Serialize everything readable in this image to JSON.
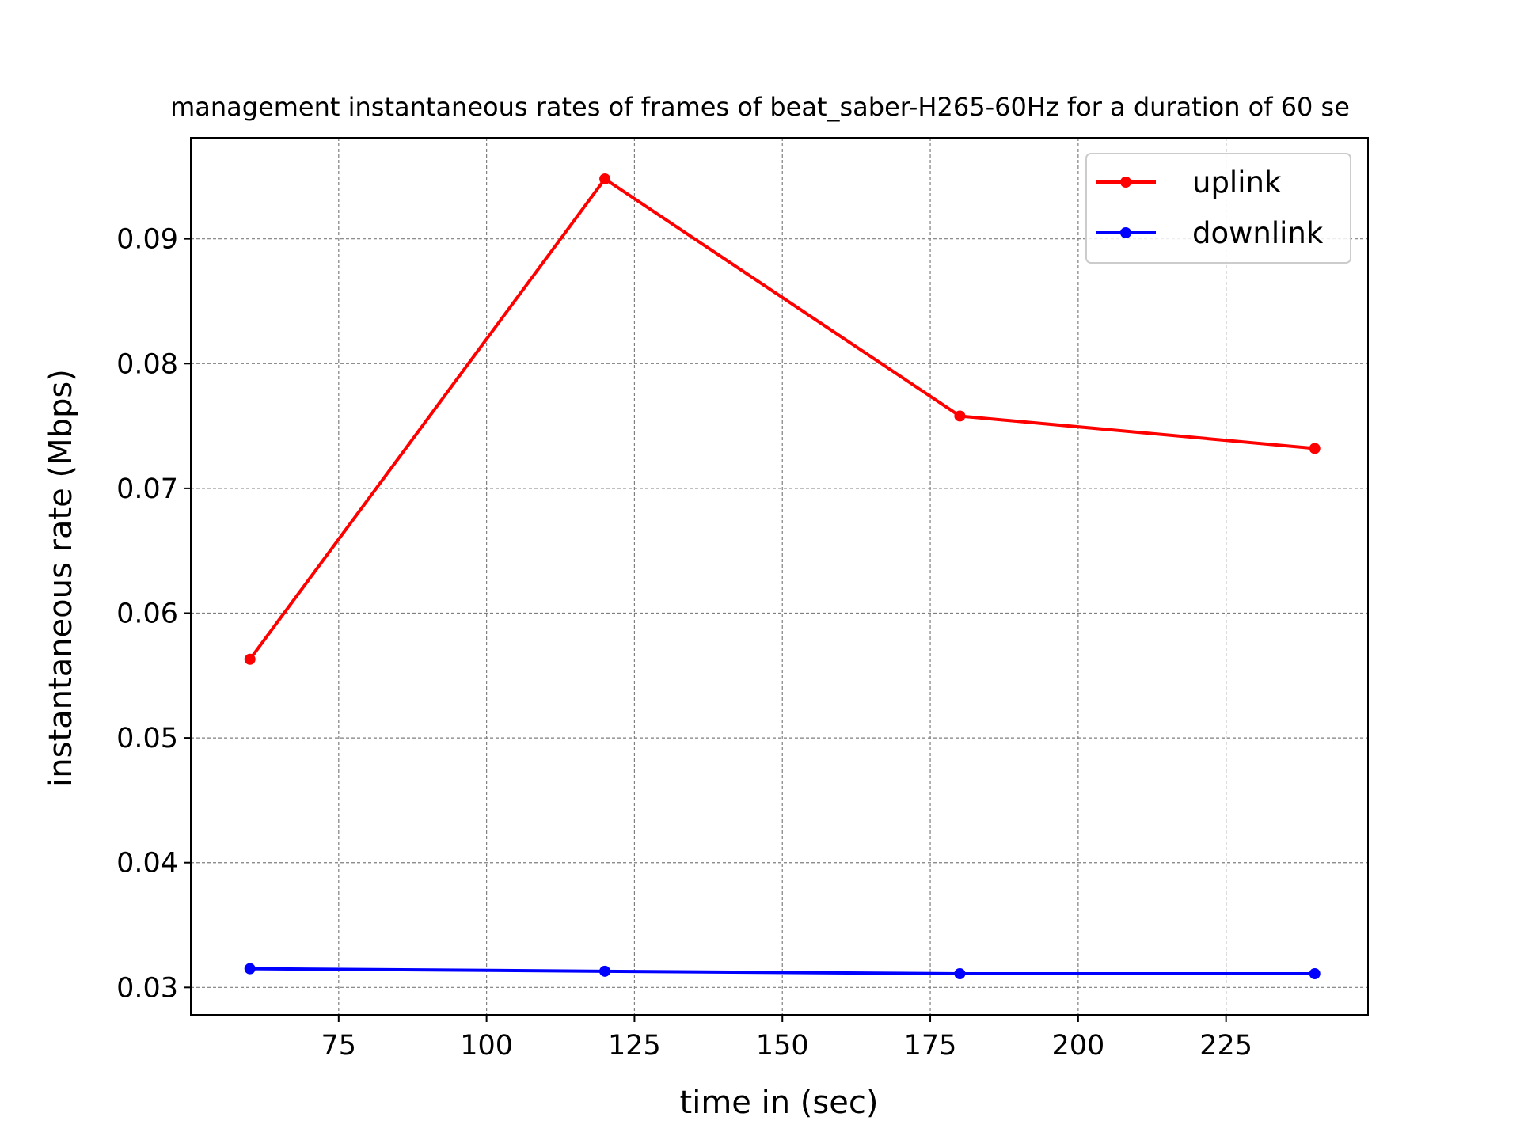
{
  "chart_data": {
    "type": "line",
    "title": "management instantaneous rates of frames of beat_saber-H265-60Hz for a duration of 60 se",
    "xlabel": "time in (sec)",
    "ylabel": "instantaneous rate (Mbps)",
    "xlim": [
      50,
      249
    ],
    "ylim": [
      0.0278,
      0.0981
    ],
    "xticks": [
      75,
      100,
      125,
      150,
      175,
      200,
      225
    ],
    "yticks": [
      0.03,
      0.04,
      0.05,
      0.06,
      0.07,
      0.08,
      0.09
    ],
    "ytick_labels": [
      "0.03",
      "0.04",
      "0.05",
      "0.06",
      "0.07",
      "0.08",
      "0.09"
    ],
    "grid": true,
    "legend_position": "top-right",
    "x": [
      60,
      120,
      180,
      240
    ],
    "series": [
      {
        "name": "uplink",
        "color": "#ff0000",
        "values": [
          0.0563,
          0.0948,
          0.0758,
          0.0732
        ]
      },
      {
        "name": "downlink",
        "color": "#0000ff",
        "values": [
          0.0315,
          0.0313,
          0.0311,
          0.0311
        ]
      }
    ]
  }
}
